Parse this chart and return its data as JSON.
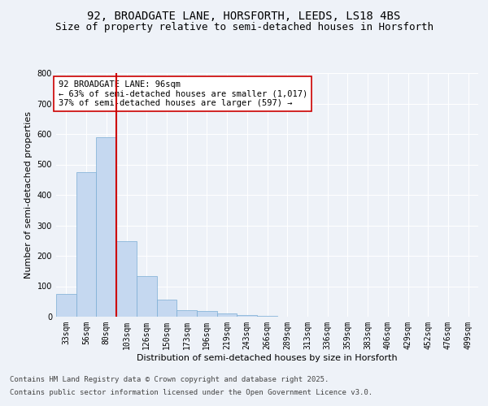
{
  "title_line1": "92, BROADGATE LANE, HORSFORTH, LEEDS, LS18 4BS",
  "title_line2": "Size of property relative to semi-detached houses in Horsforth",
  "xlabel": "Distribution of semi-detached houses by size in Horsforth",
  "ylabel": "Number of semi-detached properties",
  "categories": [
    "33sqm",
    "56sqm",
    "80sqm",
    "103sqm",
    "126sqm",
    "150sqm",
    "173sqm",
    "196sqm",
    "219sqm",
    "243sqm",
    "266sqm",
    "289sqm",
    "313sqm",
    "336sqm",
    "359sqm",
    "383sqm",
    "406sqm",
    "429sqm",
    "452sqm",
    "476sqm",
    "499sqm"
  ],
  "values": [
    75,
    475,
    590,
    247,
    133,
    55,
    22,
    18,
    10,
    5,
    2,
    1,
    1,
    0,
    0,
    0,
    0,
    0,
    0,
    0,
    0
  ],
  "bar_color": "#c5d8f0",
  "bar_edge_color": "#7aadd4",
  "red_line_index": 2.5,
  "annotation_title": "92 BROADGATE LANE: 96sqm",
  "annotation_line1": "← 63% of semi-detached houses are smaller (1,017)",
  "annotation_line2": "37% of semi-detached houses are larger (597) →",
  "red_line_color": "#cc0000",
  "ylim": [
    0,
    800
  ],
  "yticks": [
    0,
    100,
    200,
    300,
    400,
    500,
    600,
    700,
    800
  ],
  "footnote_line1": "Contains HM Land Registry data © Crown copyright and database right 2025.",
  "footnote_line2": "Contains public sector information licensed under the Open Government Licence v3.0.",
  "background_color": "#eef2f8",
  "plot_background": "#eef2f8",
  "grid_color": "#ffffff",
  "title_fontsize": 10,
  "subtitle_fontsize": 9,
  "axis_fontsize": 8,
  "tick_fontsize": 7,
  "annotation_fontsize": 7.5,
  "footnote_fontsize": 6.5
}
